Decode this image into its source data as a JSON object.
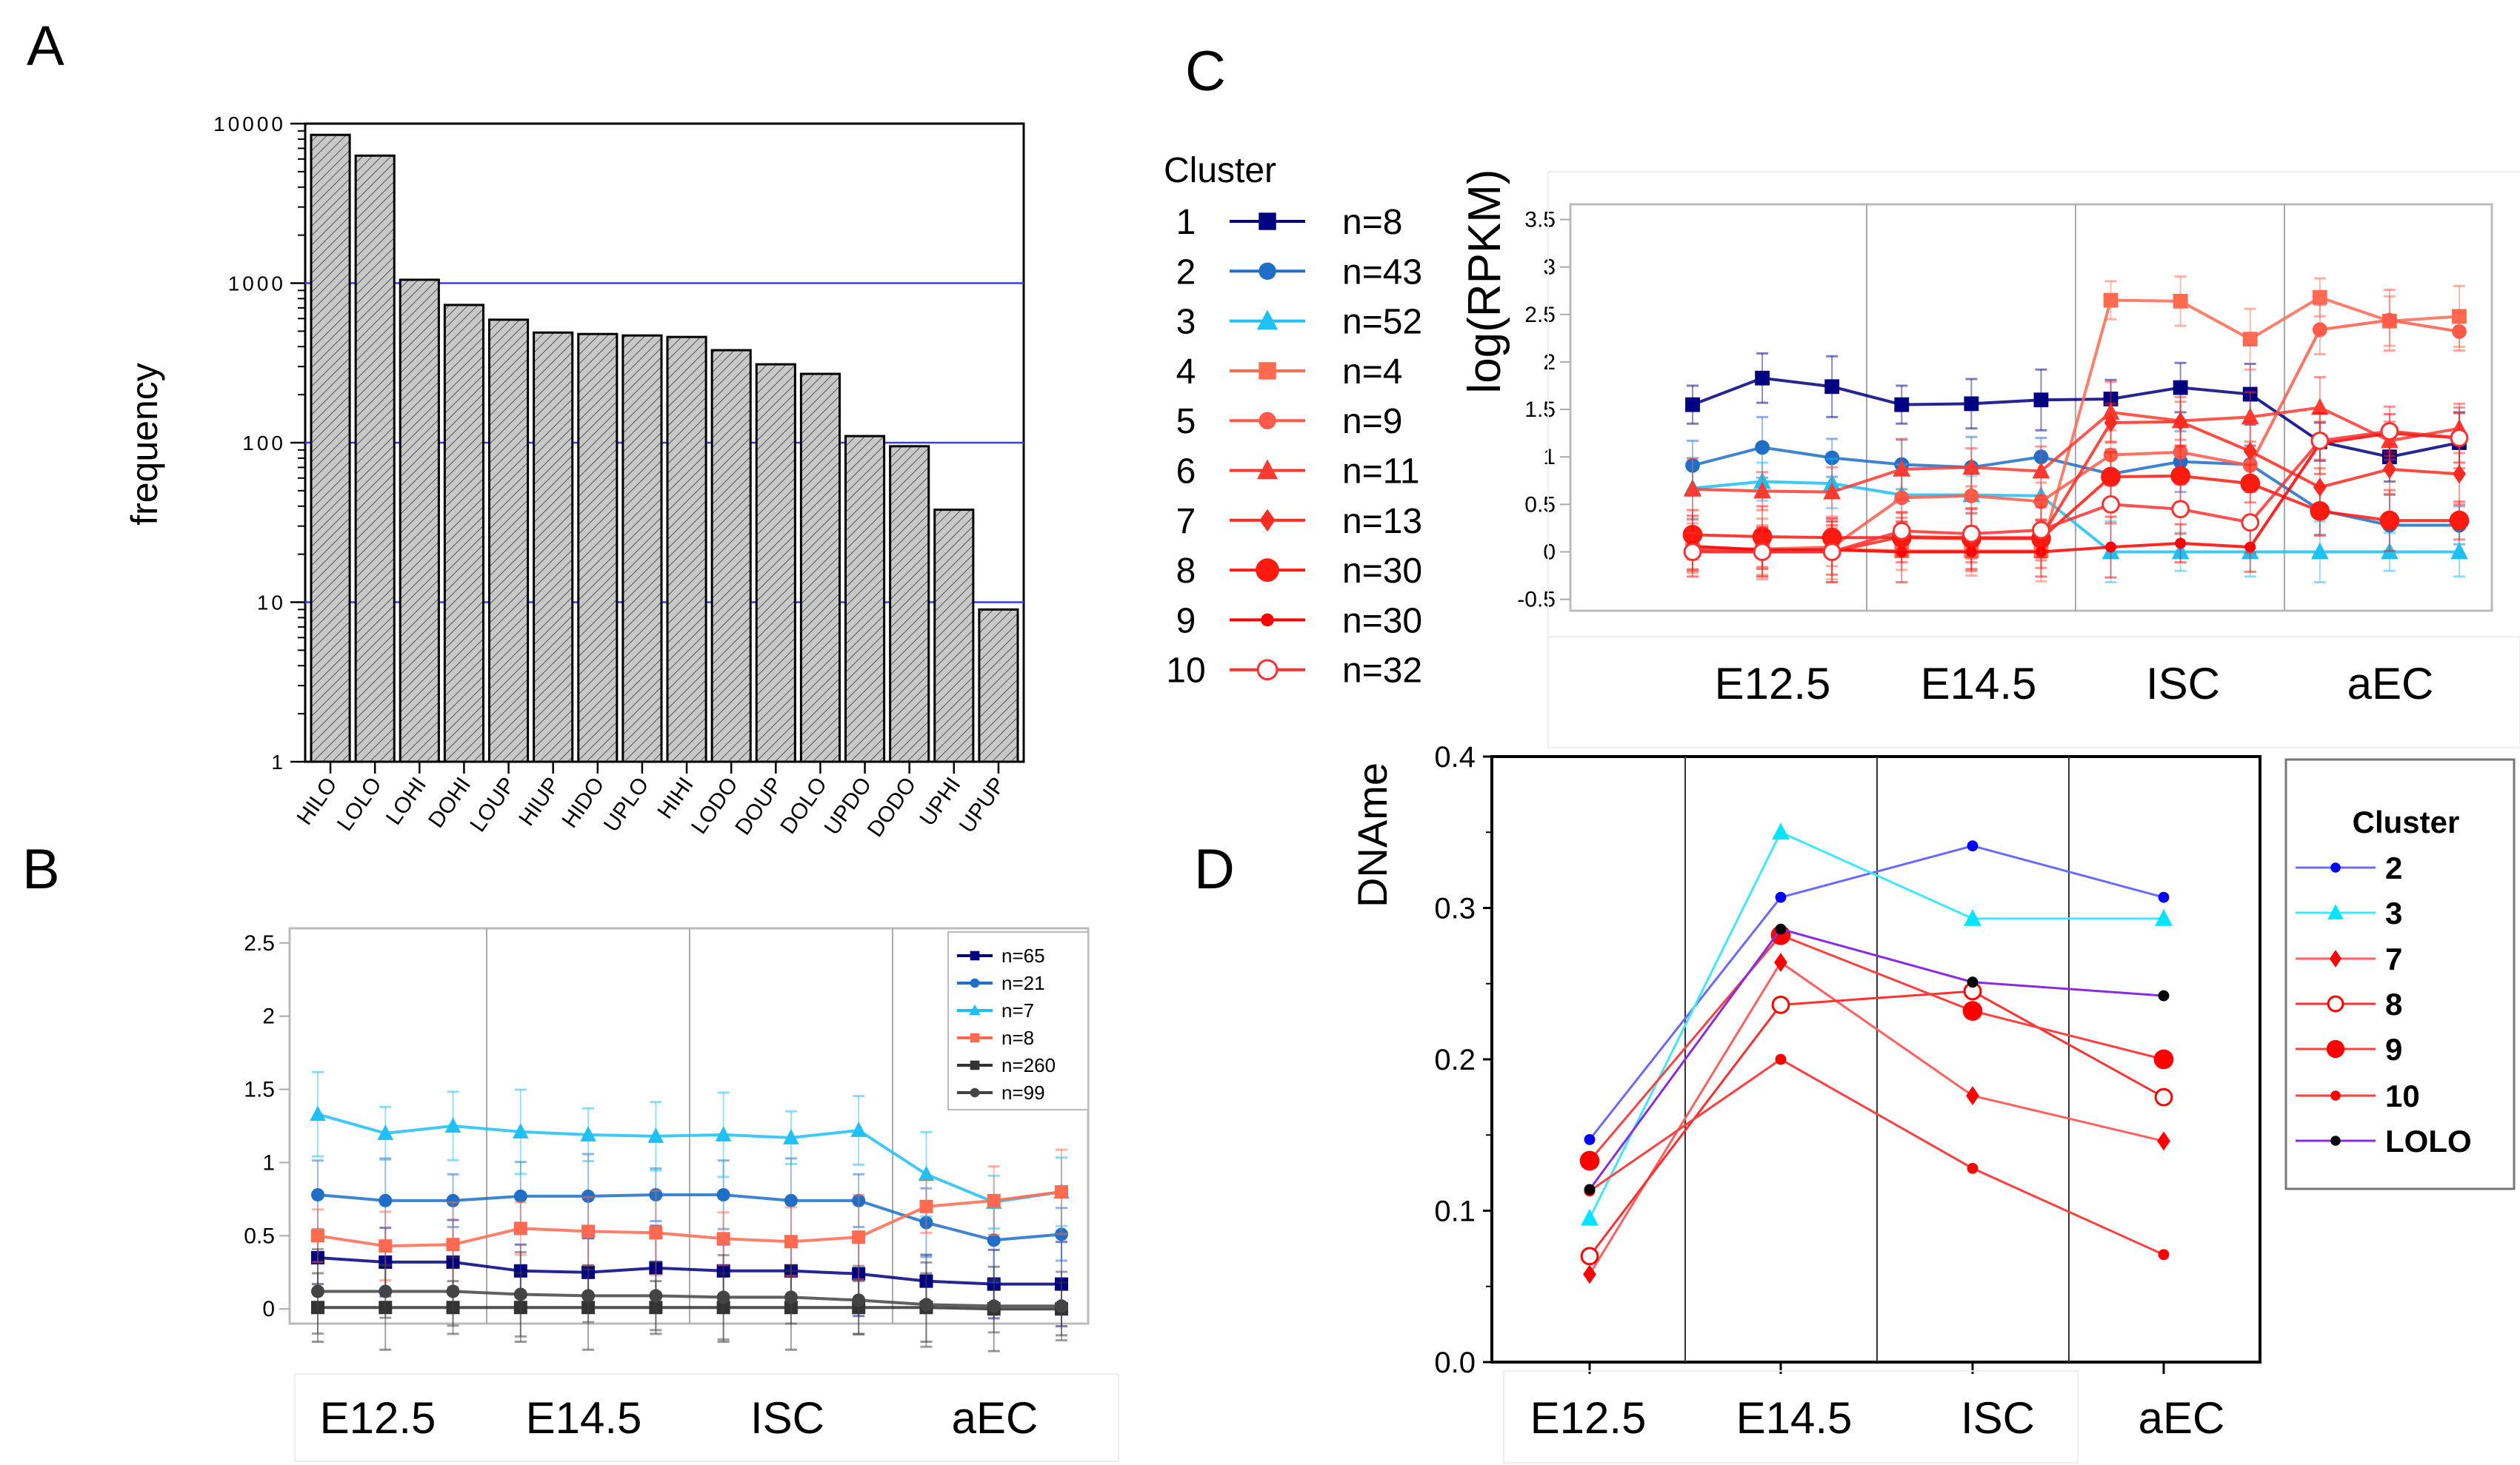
{
  "chart_data": [
    {
      "panel": "A",
      "type": "bar",
      "ylabel": "frequency",
      "yscale": "log",
      "ylim": [
        1,
        10000
      ],
      "yticks": [
        "10000",
        "1000",
        "100",
        "10",
        "1"
      ],
      "grid": "horizontal at decades, blue",
      "categories": [
        "HILO",
        "LOLO",
        "LOHI",
        "DOHI",
        "LOUP",
        "HIUP",
        "HIDO",
        "UPLO",
        "HIHI",
        "LODO",
        "DOUP",
        "DOLO",
        "UPDO",
        "DODO",
        "UPHI",
        "UPUP"
      ],
      "values": [
        8500,
        6300,
        1050,
        730,
        590,
        490,
        480,
        470,
        460,
        380,
        310,
        270,
        110,
        95,
        38,
        9
      ],
      "bar_fill": "#c8c8c8"
    },
    {
      "panel": "B",
      "type": "line",
      "ylim": [
        -0.1,
        2.6
      ],
      "yticks": [
        "0",
        "0.5",
        "1",
        "1.5",
        "2",
        "2.5"
      ],
      "xgroups": [
        "E12.5",
        "E14.5",
        "ISC",
        "aEC"
      ],
      "legend": "top-right",
      "series": [
        {
          "name": "n=65",
          "color": "#000080",
          "marker": "square",
          "values": [
            0.35,
            0.32,
            0.32,
            0.26,
            0.25,
            0.28,
            0.26,
            0.26,
            0.24,
            0.19,
            0.17,
            0.17
          ]
        },
        {
          "name": "n=21",
          "color": "#1f6fc8",
          "marker": "circle",
          "values": [
            0.78,
            0.74,
            0.74,
            0.77,
            0.77,
            0.78,
            0.78,
            0.74,
            0.74,
            0.59,
            0.47,
            0.51
          ]
        },
        {
          "name": "n=7",
          "color": "#1ec0f5",
          "marker": "triangle",
          "values": [
            1.33,
            1.2,
            1.25,
            1.21,
            1.19,
            1.18,
            1.19,
            1.17,
            1.22,
            0.92,
            0.73,
            0.8
          ]
        },
        {
          "name": "n=8",
          "color": "#ff6a50",
          "marker": "square",
          "values": [
            0.5,
            0.43,
            0.44,
            0.55,
            0.53,
            0.52,
            0.48,
            0.46,
            0.49,
            0.7,
            0.74,
            0.8
          ]
        },
        {
          "name": "n=260",
          "color": "#333333",
          "marker": "square",
          "values": [
            0.01,
            0.01,
            0.01,
            0.01,
            0.01,
            0.01,
            0.01,
            0.01,
            0.01,
            0.01,
            0.0,
            0.0
          ]
        },
        {
          "name": "n=99",
          "color": "#444444",
          "marker": "circle",
          "values": [
            0.12,
            0.12,
            0.12,
            0.1,
            0.09,
            0.09,
            0.08,
            0.08,
            0.06,
            0.03,
            0.02,
            0.02
          ]
        }
      ]
    },
    {
      "panel": "C",
      "type": "line",
      "ylabel": "log(RPKM)",
      "ylim": [
        -0.62,
        3.66
      ],
      "yticks": [
        "-0.5",
        "0",
        "0.5",
        "1",
        "1.5",
        "2",
        "2.5",
        "3",
        "3.5"
      ],
      "xgroups": [
        "E12.5",
        "E14.5",
        "ISC",
        "aEC"
      ],
      "legend_title": "Cluster",
      "legend": "left",
      "series": [
        {
          "name": "1",
          "n": "n=8",
          "color": "#000080",
          "marker": "square",
          "values": [
            1.55,
            1.83,
            1.74,
            1.55,
            1.56,
            1.6,
            1.61,
            1.73,
            1.66,
            1.16,
            1.0,
            1.15
          ]
        },
        {
          "name": "2",
          "n": "n=43",
          "color": "#1f6fc8",
          "marker": "circle",
          "values": [
            0.91,
            1.1,
            0.99,
            0.92,
            0.89,
            1.0,
            0.82,
            0.95,
            0.92,
            0.44,
            0.28,
            0.28
          ]
        },
        {
          "name": "3",
          "n": "n=52",
          "color": "#1ec0f5",
          "marker": "triangle",
          "values": [
            0.67,
            0.74,
            0.72,
            0.6,
            0.6,
            0.59,
            0.0,
            0.0,
            0.0,
            0.0,
            0.0,
            0.0
          ]
        },
        {
          "name": "4",
          "n": "n=4",
          "color": "#ff6a50",
          "marker": "square",
          "values": [
            0.02,
            0.02,
            0.03,
            0.01,
            0.01,
            0.01,
            2.65,
            2.64,
            2.24,
            2.68,
            2.43,
            2.48
          ]
        },
        {
          "name": "5",
          "n": "n=9",
          "color": "#ff5a4a",
          "marker": "circle",
          "values": [
            0.04,
            0.03,
            0.05,
            0.57,
            0.59,
            0.53,
            1.02,
            1.05,
            0.91,
            2.34,
            2.44,
            2.32
          ]
        },
        {
          "name": "6",
          "n": "n=11",
          "color": "#ff3a30",
          "marker": "triangle",
          "values": [
            0.66,
            0.64,
            0.63,
            0.87,
            0.89,
            0.85,
            1.47,
            1.38,
            1.42,
            1.52,
            1.17,
            1.3
          ]
        },
        {
          "name": "7",
          "n": "n=13",
          "color": "#ff2a20",
          "marker": "diamond",
          "values": [
            0.01,
            0.0,
            0.0,
            0.16,
            0.15,
            0.15,
            1.36,
            1.37,
            1.06,
            0.68,
            0.87,
            0.82
          ]
        },
        {
          "name": "8",
          "n": "n=30",
          "color": "#ff1a10",
          "marker": "bigcircle",
          "values": [
            0.18,
            0.16,
            0.15,
            0.15,
            0.14,
            0.14,
            0.79,
            0.8,
            0.72,
            0.43,
            0.33,
            0.33
          ]
        },
        {
          "name": "9",
          "n": "n=30",
          "color": "#ff0000",
          "marker": "smallcircle",
          "values": [
            0.06,
            0.02,
            0.02,
            0.0,
            0.0,
            0.0,
            0.05,
            0.09,
            0.05,
            1.14,
            1.25,
            1.2
          ]
        },
        {
          "name": "10",
          "n": "n=32",
          "color": "#ff3030",
          "marker": "opencircle",
          "values": [
            0.0,
            0.0,
            0.0,
            0.22,
            0.19,
            0.23,
            0.5,
            0.45,
            0.31,
            1.17,
            1.27,
            1.2
          ]
        }
      ]
    },
    {
      "panel": "D",
      "type": "line",
      "ylabel": "DNAme",
      "ylim": [
        0.0,
        0.4
      ],
      "yticks": [
        "0.0",
        "0.1",
        "0.2",
        "0.3",
        "0.4"
      ],
      "categories": [
        "E12.5",
        "E14.5",
        "ISC",
        "aEC"
      ],
      "legend_title": "Cluster",
      "legend": "right",
      "series": [
        {
          "name": "2",
          "color": "#0000ff",
          "line": "#6a6aff",
          "marker": "smallcircle",
          "values": [
            0.147,
            0.307,
            0.341,
            0.307
          ]
        },
        {
          "name": "3",
          "color": "#00e5ff",
          "line": "#40e8ff",
          "marker": "triangle",
          "values": [
            0.095,
            0.35,
            0.293,
            0.293
          ]
        },
        {
          "name": "7",
          "color": "#ff0000",
          "line": "#ff6060",
          "marker": "diamond",
          "values": [
            0.058,
            0.264,
            0.176,
            0.146
          ]
        },
        {
          "name": "8",
          "color": "#ff0000",
          "line": "#ff3030",
          "marker": "opencircle",
          "values": [
            0.07,
            0.236,
            0.245,
            0.175
          ]
        },
        {
          "name": "9",
          "color": "#ff0000",
          "line": "#ff4040",
          "marker": "bigcircle",
          "values": [
            0.133,
            0.282,
            0.232,
            0.2
          ]
        },
        {
          "name": "10",
          "color": "#ff0000",
          "line": "#ff4040",
          "marker": "smallcircle",
          "values": [
            0.113,
            0.2,
            0.128,
            0.071
          ]
        },
        {
          "name": "LOLO",
          "color": "#000000",
          "line": "#8a2be2",
          "marker": "smallcircle",
          "values": [
            0.114,
            0.286,
            0.251,
            0.242
          ]
        }
      ]
    }
  ],
  "panels": {
    "a": "A",
    "b": "B",
    "c": "C",
    "d": "D"
  }
}
